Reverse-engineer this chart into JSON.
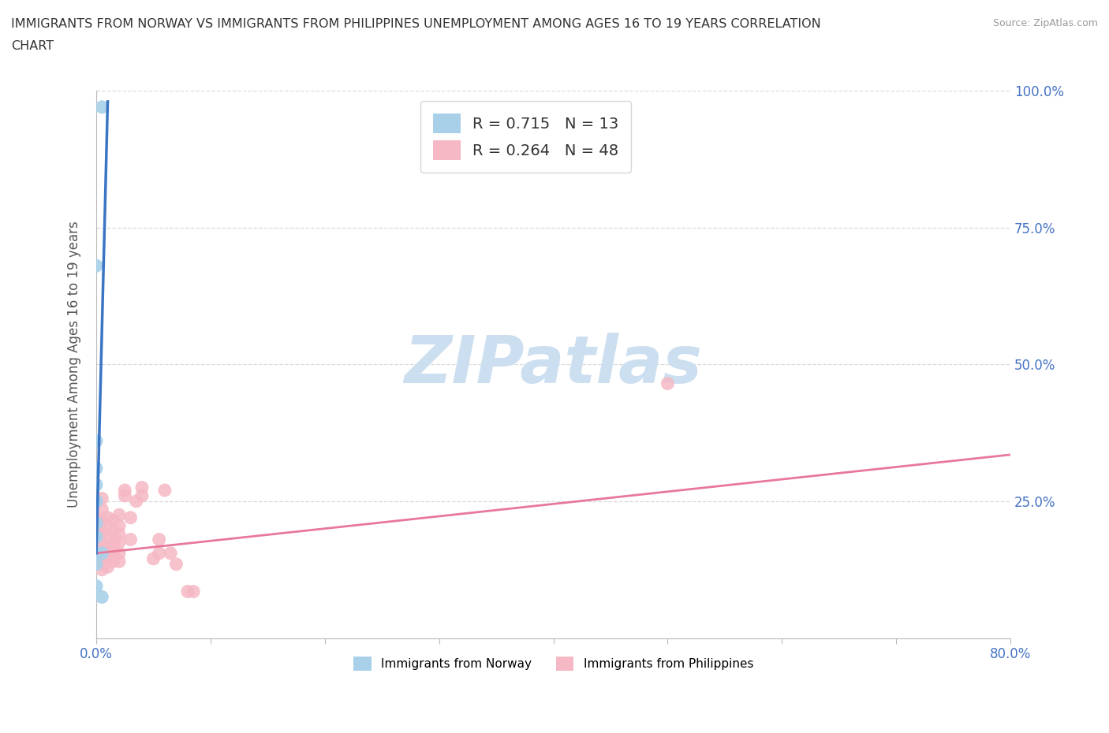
{
  "title_line1": "IMMIGRANTS FROM NORWAY VS IMMIGRANTS FROM PHILIPPINES UNEMPLOYMENT AMONG AGES 16 TO 19 YEARS CORRELATION",
  "title_line2": "CHART",
  "source": "Source: ZipAtlas.com",
  "ylabel": "Unemployment Among Ages 16 to 19 years",
  "xlim": [
    0.0,
    0.8
  ],
  "ylim": [
    0.0,
    1.0
  ],
  "xticks": [
    0.0,
    0.1,
    0.2,
    0.3,
    0.4,
    0.5,
    0.6,
    0.7,
    0.8
  ],
  "yticks": [
    0.0,
    0.25,
    0.5,
    0.75,
    1.0
  ],
  "norway_R": 0.715,
  "norway_N": 13,
  "philippines_R": 0.264,
  "philippines_N": 48,
  "norway_color": "#A8D0E8",
  "norway_line_color": "#3A75C4",
  "philippines_color": "#F5B8C4",
  "philippines_line_color": "#E8789A",
  "background_color": "#ffffff",
  "watermark": "ZIPatlas",
  "watermark_color": "#ccdff0",
  "legend_norway": "Immigrants from Norway",
  "legend_philippines": "Immigrants from Philippines",
  "norway_scatter": [
    [
      0.005,
      0.97
    ],
    [
      0.0,
      0.68
    ],
    [
      0.0,
      0.36
    ],
    [
      0.0,
      0.31
    ],
    [
      0.0,
      0.28
    ],
    [
      0.0,
      0.25
    ],
    [
      0.0,
      0.21
    ],
    [
      0.0,
      0.185
    ],
    [
      0.0,
      0.155
    ],
    [
      0.005,
      0.155
    ],
    [
      0.0,
      0.135
    ],
    [
      0.0,
      0.095
    ],
    [
      0.005,
      0.075
    ]
  ],
  "philippines_scatter": [
    [
      0.0,
      0.215
    ],
    [
      0.0,
      0.195
    ],
    [
      0.0,
      0.175
    ],
    [
      0.0,
      0.165
    ],
    [
      0.005,
      0.155
    ],
    [
      0.005,
      0.175
    ],
    [
      0.005,
      0.195
    ],
    [
      0.005,
      0.215
    ],
    [
      0.005,
      0.235
    ],
    [
      0.005,
      0.255
    ],
    [
      0.005,
      0.145
    ],
    [
      0.005,
      0.135
    ],
    [
      0.005,
      0.125
    ],
    [
      0.01,
      0.22
    ],
    [
      0.01,
      0.205
    ],
    [
      0.01,
      0.185
    ],
    [
      0.01,
      0.165
    ],
    [
      0.01,
      0.155
    ],
    [
      0.01,
      0.145
    ],
    [
      0.01,
      0.13
    ],
    [
      0.015,
      0.215
    ],
    [
      0.015,
      0.195
    ],
    [
      0.015,
      0.175
    ],
    [
      0.015,
      0.165
    ],
    [
      0.015,
      0.155
    ],
    [
      0.015,
      0.14
    ],
    [
      0.02,
      0.225
    ],
    [
      0.02,
      0.205
    ],
    [
      0.02,
      0.19
    ],
    [
      0.02,
      0.175
    ],
    [
      0.02,
      0.155
    ],
    [
      0.02,
      0.14
    ],
    [
      0.025,
      0.27
    ],
    [
      0.025,
      0.26
    ],
    [
      0.03,
      0.22
    ],
    [
      0.03,
      0.18
    ],
    [
      0.035,
      0.25
    ],
    [
      0.04,
      0.275
    ],
    [
      0.04,
      0.26
    ],
    [
      0.05,
      0.145
    ],
    [
      0.055,
      0.18
    ],
    [
      0.055,
      0.155
    ],
    [
      0.06,
      0.27
    ],
    [
      0.065,
      0.155
    ],
    [
      0.07,
      0.135
    ],
    [
      0.08,
      0.085
    ],
    [
      0.085,
      0.085
    ],
    [
      0.5,
      0.465
    ]
  ],
  "norway_trend_x": [
    0.0,
    0.01
  ],
  "norway_trend_y": [
    0.155,
    0.98
  ],
  "philippines_trend_x": [
    0.0,
    0.8
  ],
  "philippines_trend_y": [
    0.155,
    0.335
  ]
}
